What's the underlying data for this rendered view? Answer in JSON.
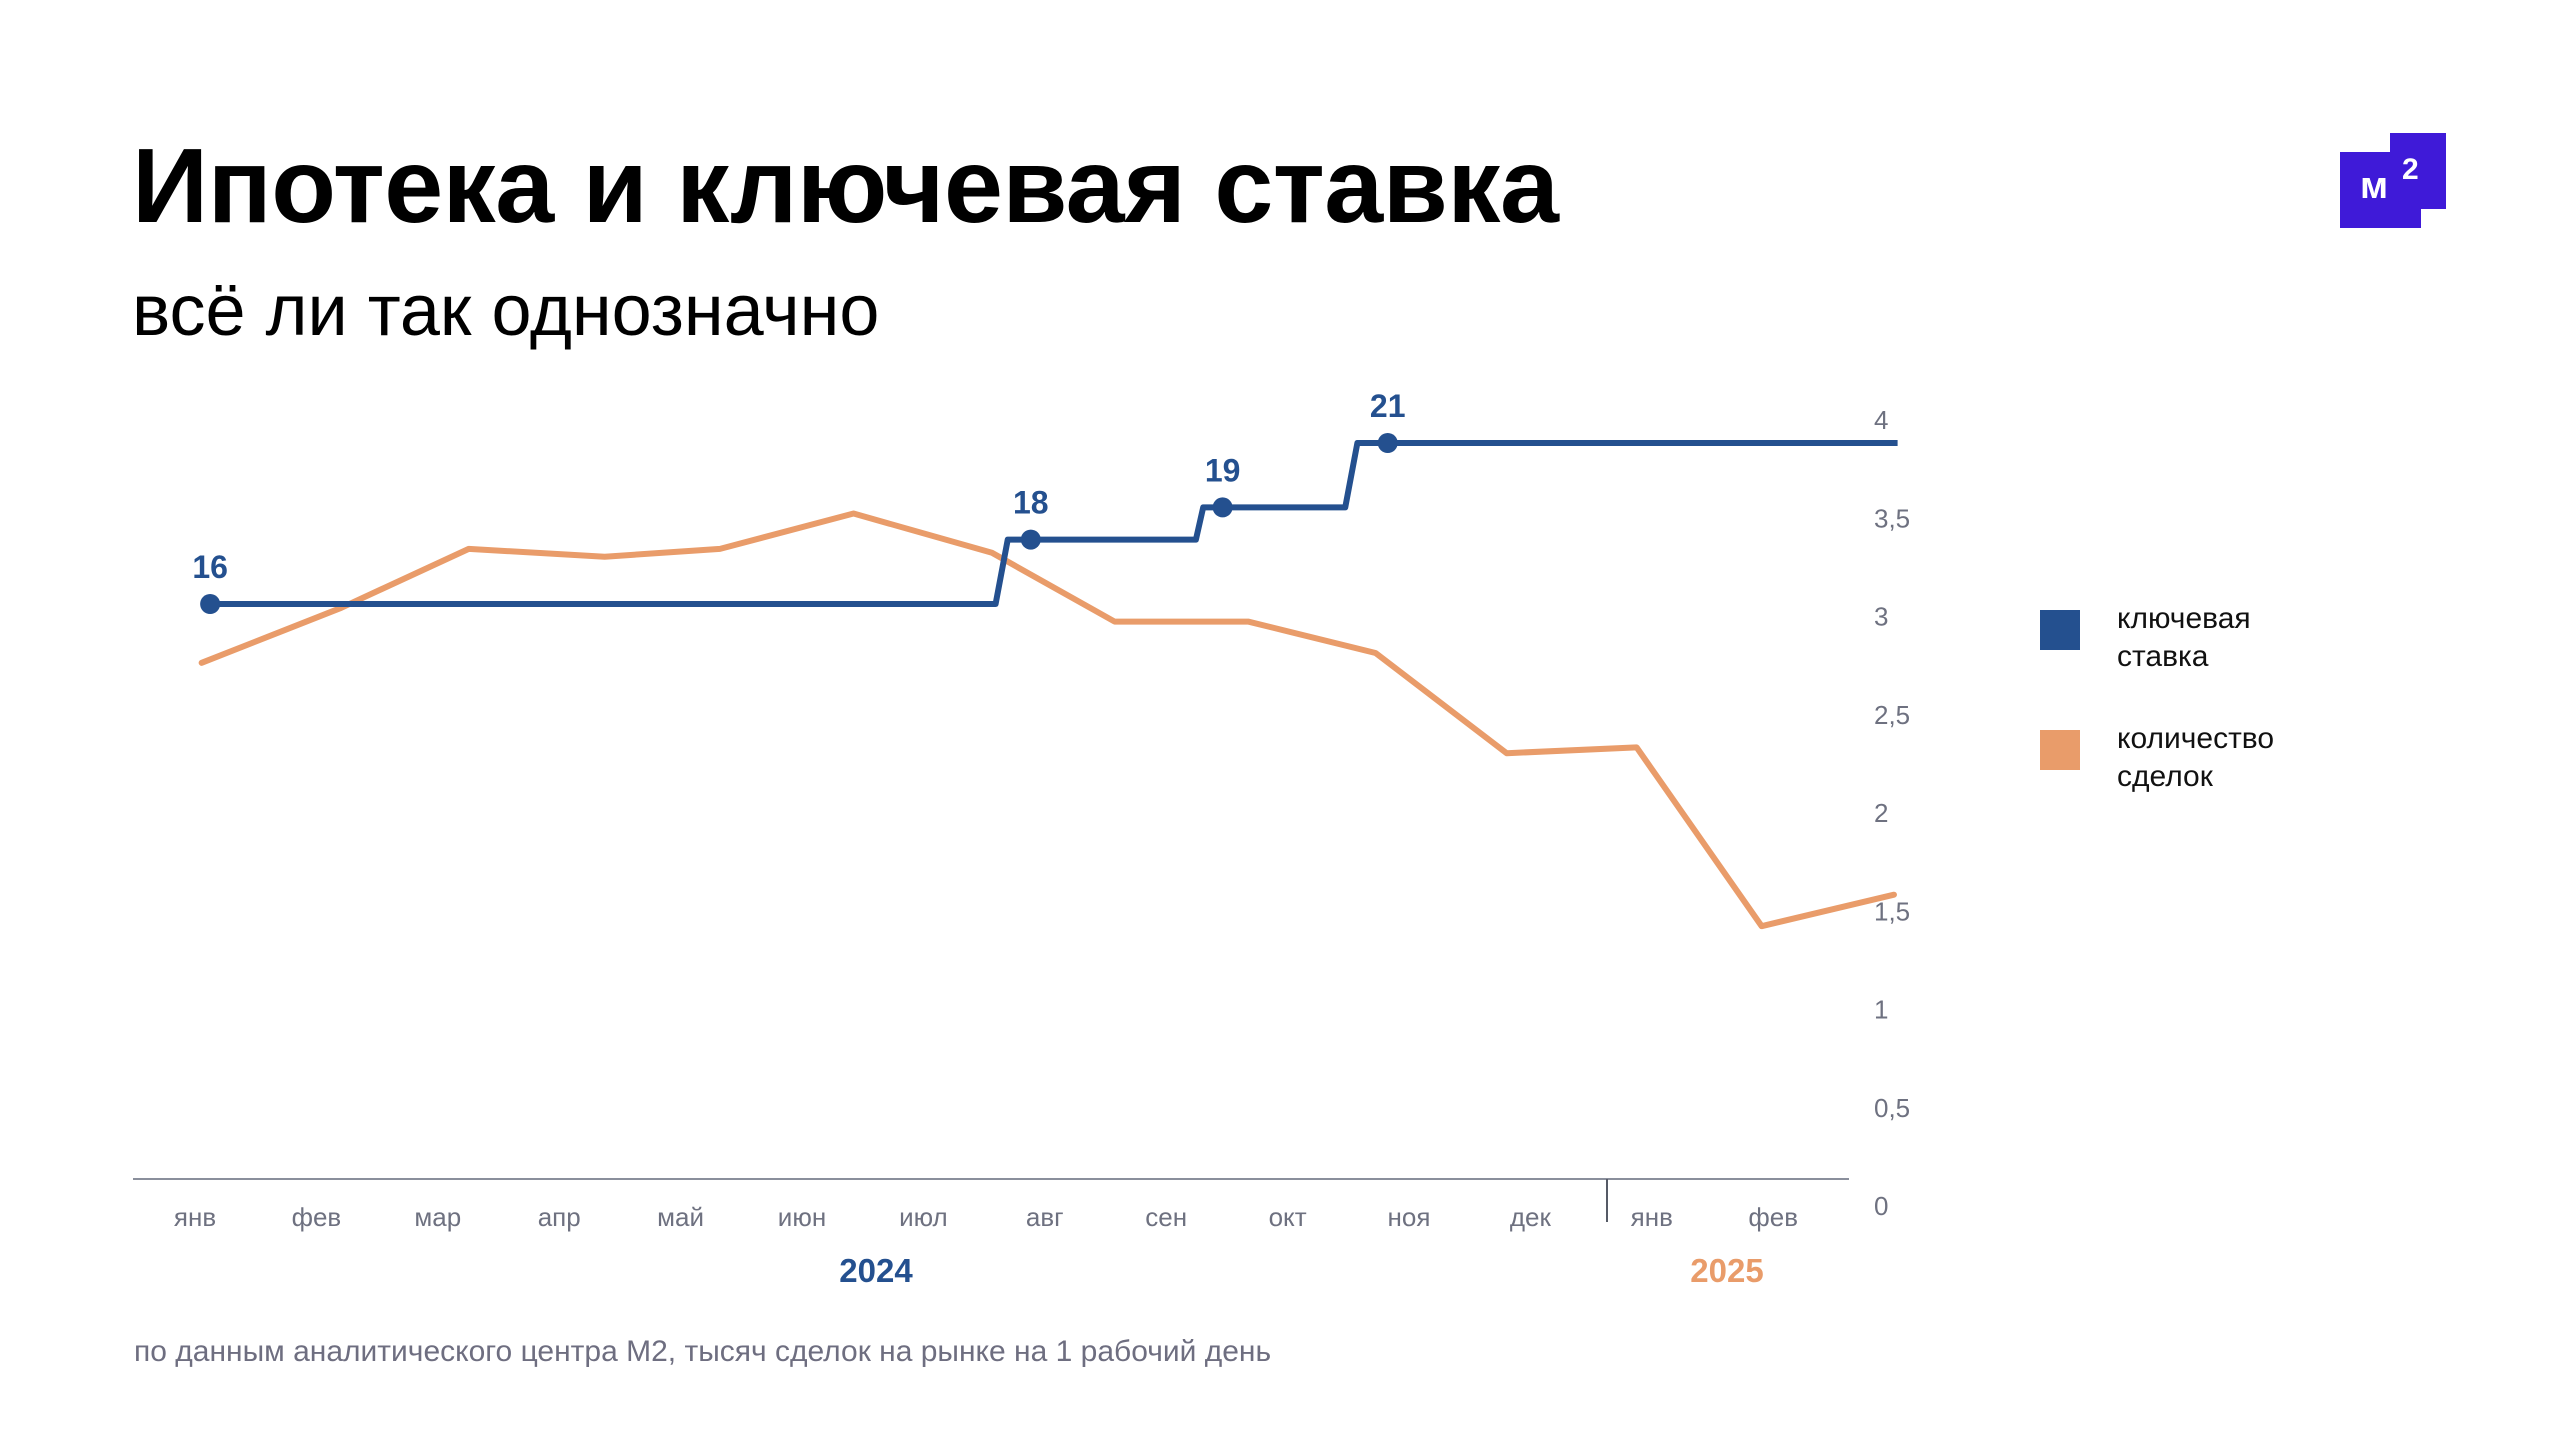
{
  "title": "Ипотека и ключевая ставка",
  "subtitle": "всё ли так однозначно",
  "logo": {
    "text": "м",
    "superscript": "2",
    "color": "#3f1ad8"
  },
  "footnote": "по данным аналитического центра М2, тысяч сделок на рынке на 1 рабочий день",
  "legend": [
    {
      "label": "ключевая ставка",
      "color": "#24508f"
    },
    {
      "label": "количество сделок",
      "color": "#e99c6a"
    }
  ],
  "chart_data": {
    "type": "line",
    "categories": [
      "янв",
      "фев",
      "мар",
      "апр",
      "май",
      "июн",
      "июл",
      "авг",
      "сен",
      "окт",
      "ноя",
      "дек",
      "янв",
      "фев"
    ],
    "year_labels": [
      {
        "label": "2024",
        "color": "#24508f"
      },
      {
        "label": "2025",
        "color": "#e99c6a"
      }
    ],
    "y_ticks": [
      "0",
      "0,5",
      "1",
      "1,5",
      "2",
      "2,5",
      "3",
      "3,5",
      "4"
    ],
    "ylim": [
      0,
      4
    ],
    "y_axis_position": "right",
    "grid": false,
    "legend_position": "right",
    "series": [
      {
        "name": "количество сделок",
        "color": "#e99c6a",
        "x": [
          0.03,
          1.18,
          2.23,
          3.35,
          4.3,
          5.4,
          6.54,
          7.55,
          8.65,
          9.7,
          10.78,
          11.85,
          12.88,
          13.97
        ],
        "y": [
          2.81,
          3.09,
          3.39,
          3.35,
          3.39,
          3.57,
          3.37,
          3.02,
          3.02,
          2.86,
          2.35,
          2.38,
          1.47,
          1.63
        ]
      },
      {
        "name": "ключевая ставка",
        "color": "#24508f",
        "step": true,
        "x": [
          0.1,
          6.57,
          6.67,
          8.22,
          8.28,
          9.45,
          9.55,
          14.0
        ],
        "y": [
          16,
          16,
          18,
          18,
          19,
          19,
          21,
          21
        ],
        "labeled_points": [
          {
            "x": 0.1,
            "label": "16"
          },
          {
            "x": 6.86,
            "label": "18"
          },
          {
            "x": 8.44,
            "label": "19"
          },
          {
            "x": 9.8,
            "label": "21"
          }
        ]
      }
    ]
  }
}
